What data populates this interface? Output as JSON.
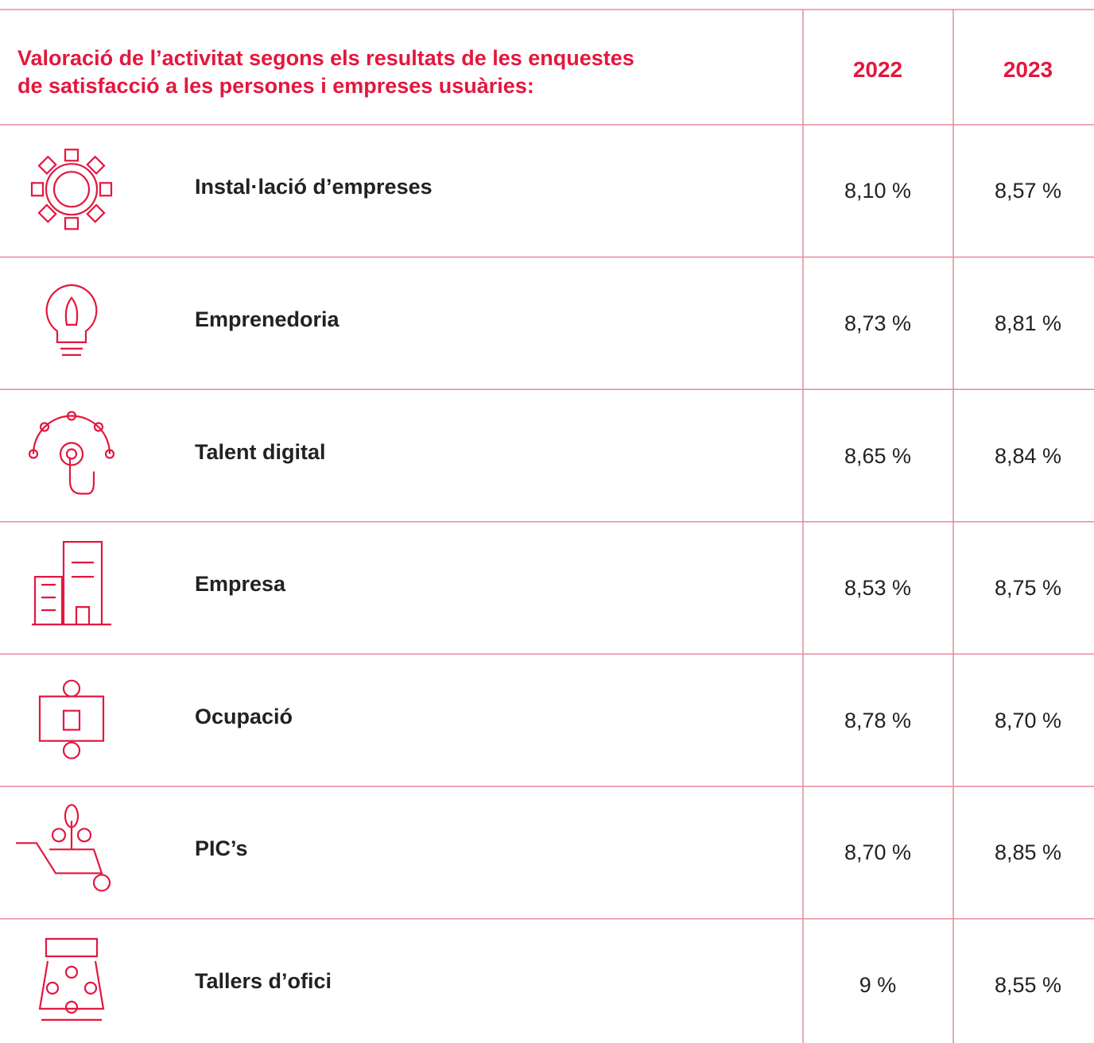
{
  "header": {
    "title_lines": [
      "Valoració de l’activitat segons els resultats de les enquestes",
      "de satisfacció a les persones i empreses usuàries:"
    ],
    "columns": [
      "2022",
      "2023"
    ]
  },
  "table": {
    "rows": [
      [
        "Instal·lació d’empreses",
        "8,10 %",
        "8,57 %"
      ],
      [
        "Emprenedoria",
        "8,73 %",
        "8,81 %"
      ],
      [
        "Talent digital",
        "8,65 %",
        "8,84 %"
      ],
      [
        "Empresa",
        "8,53 %",
        "8,75 %"
      ],
      [
        "Ocupació",
        "8,78 %",
        "8,70 %"
      ],
      [
        "PIC’s",
        "8,70 %",
        "8,85 %"
      ],
      [
        "Tallers d’ofici",
        "9 %",
        "8,55 %"
      ]
    ]
  }
}
